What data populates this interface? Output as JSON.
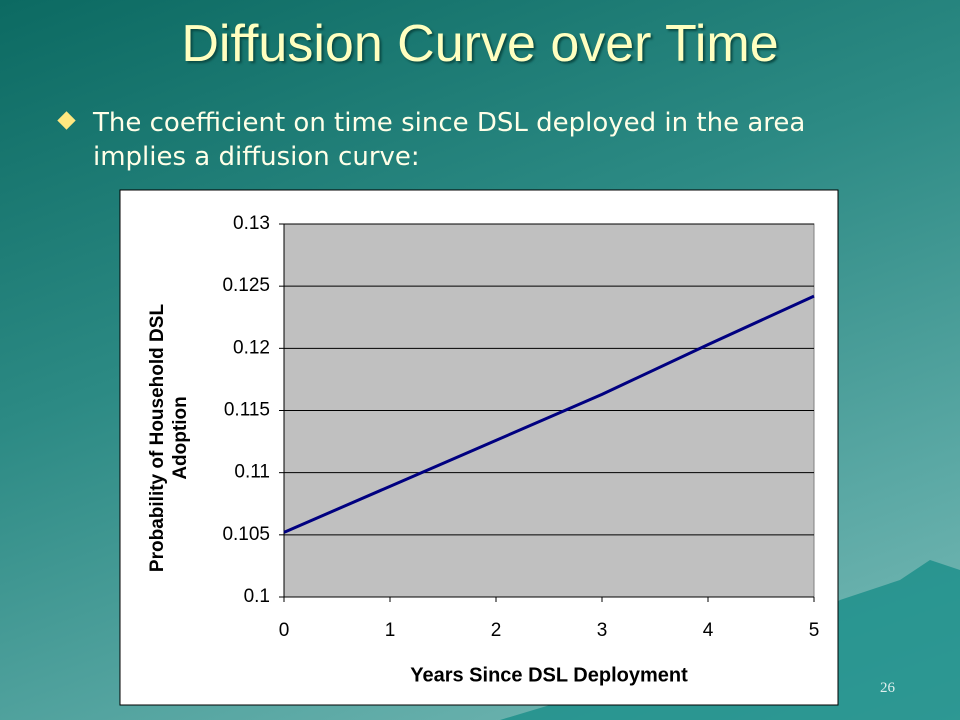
{
  "slide": {
    "title": "Diffusion Curve over Time",
    "bullet": "The coefficient on time since DSL deployed in the area implies a diffusion curve:",
    "page_number": "26"
  },
  "chart_data": {
    "type": "line",
    "x_label": "Years Since DSL Deployment",
    "y_label": [
      "Probability of Household DSL",
      "Adoption"
    ],
    "x": [
      0,
      1,
      2,
      3,
      4,
      5
    ],
    "series": [
      {
        "name": "Probability",
        "color": "#000080",
        "values": [
          0.1052,
          0.1089,
          0.1126,
          0.1163,
          0.1203,
          0.1242
        ]
      }
    ],
    "xlim": [
      0,
      5
    ],
    "xticks": [
      0,
      1,
      2,
      3,
      4,
      5
    ],
    "ylim": [
      0.1,
      0.13
    ],
    "yticks": [
      0.1,
      0.105,
      0.11,
      0.115,
      0.12,
      0.125,
      0.13
    ],
    "grid": true
  }
}
